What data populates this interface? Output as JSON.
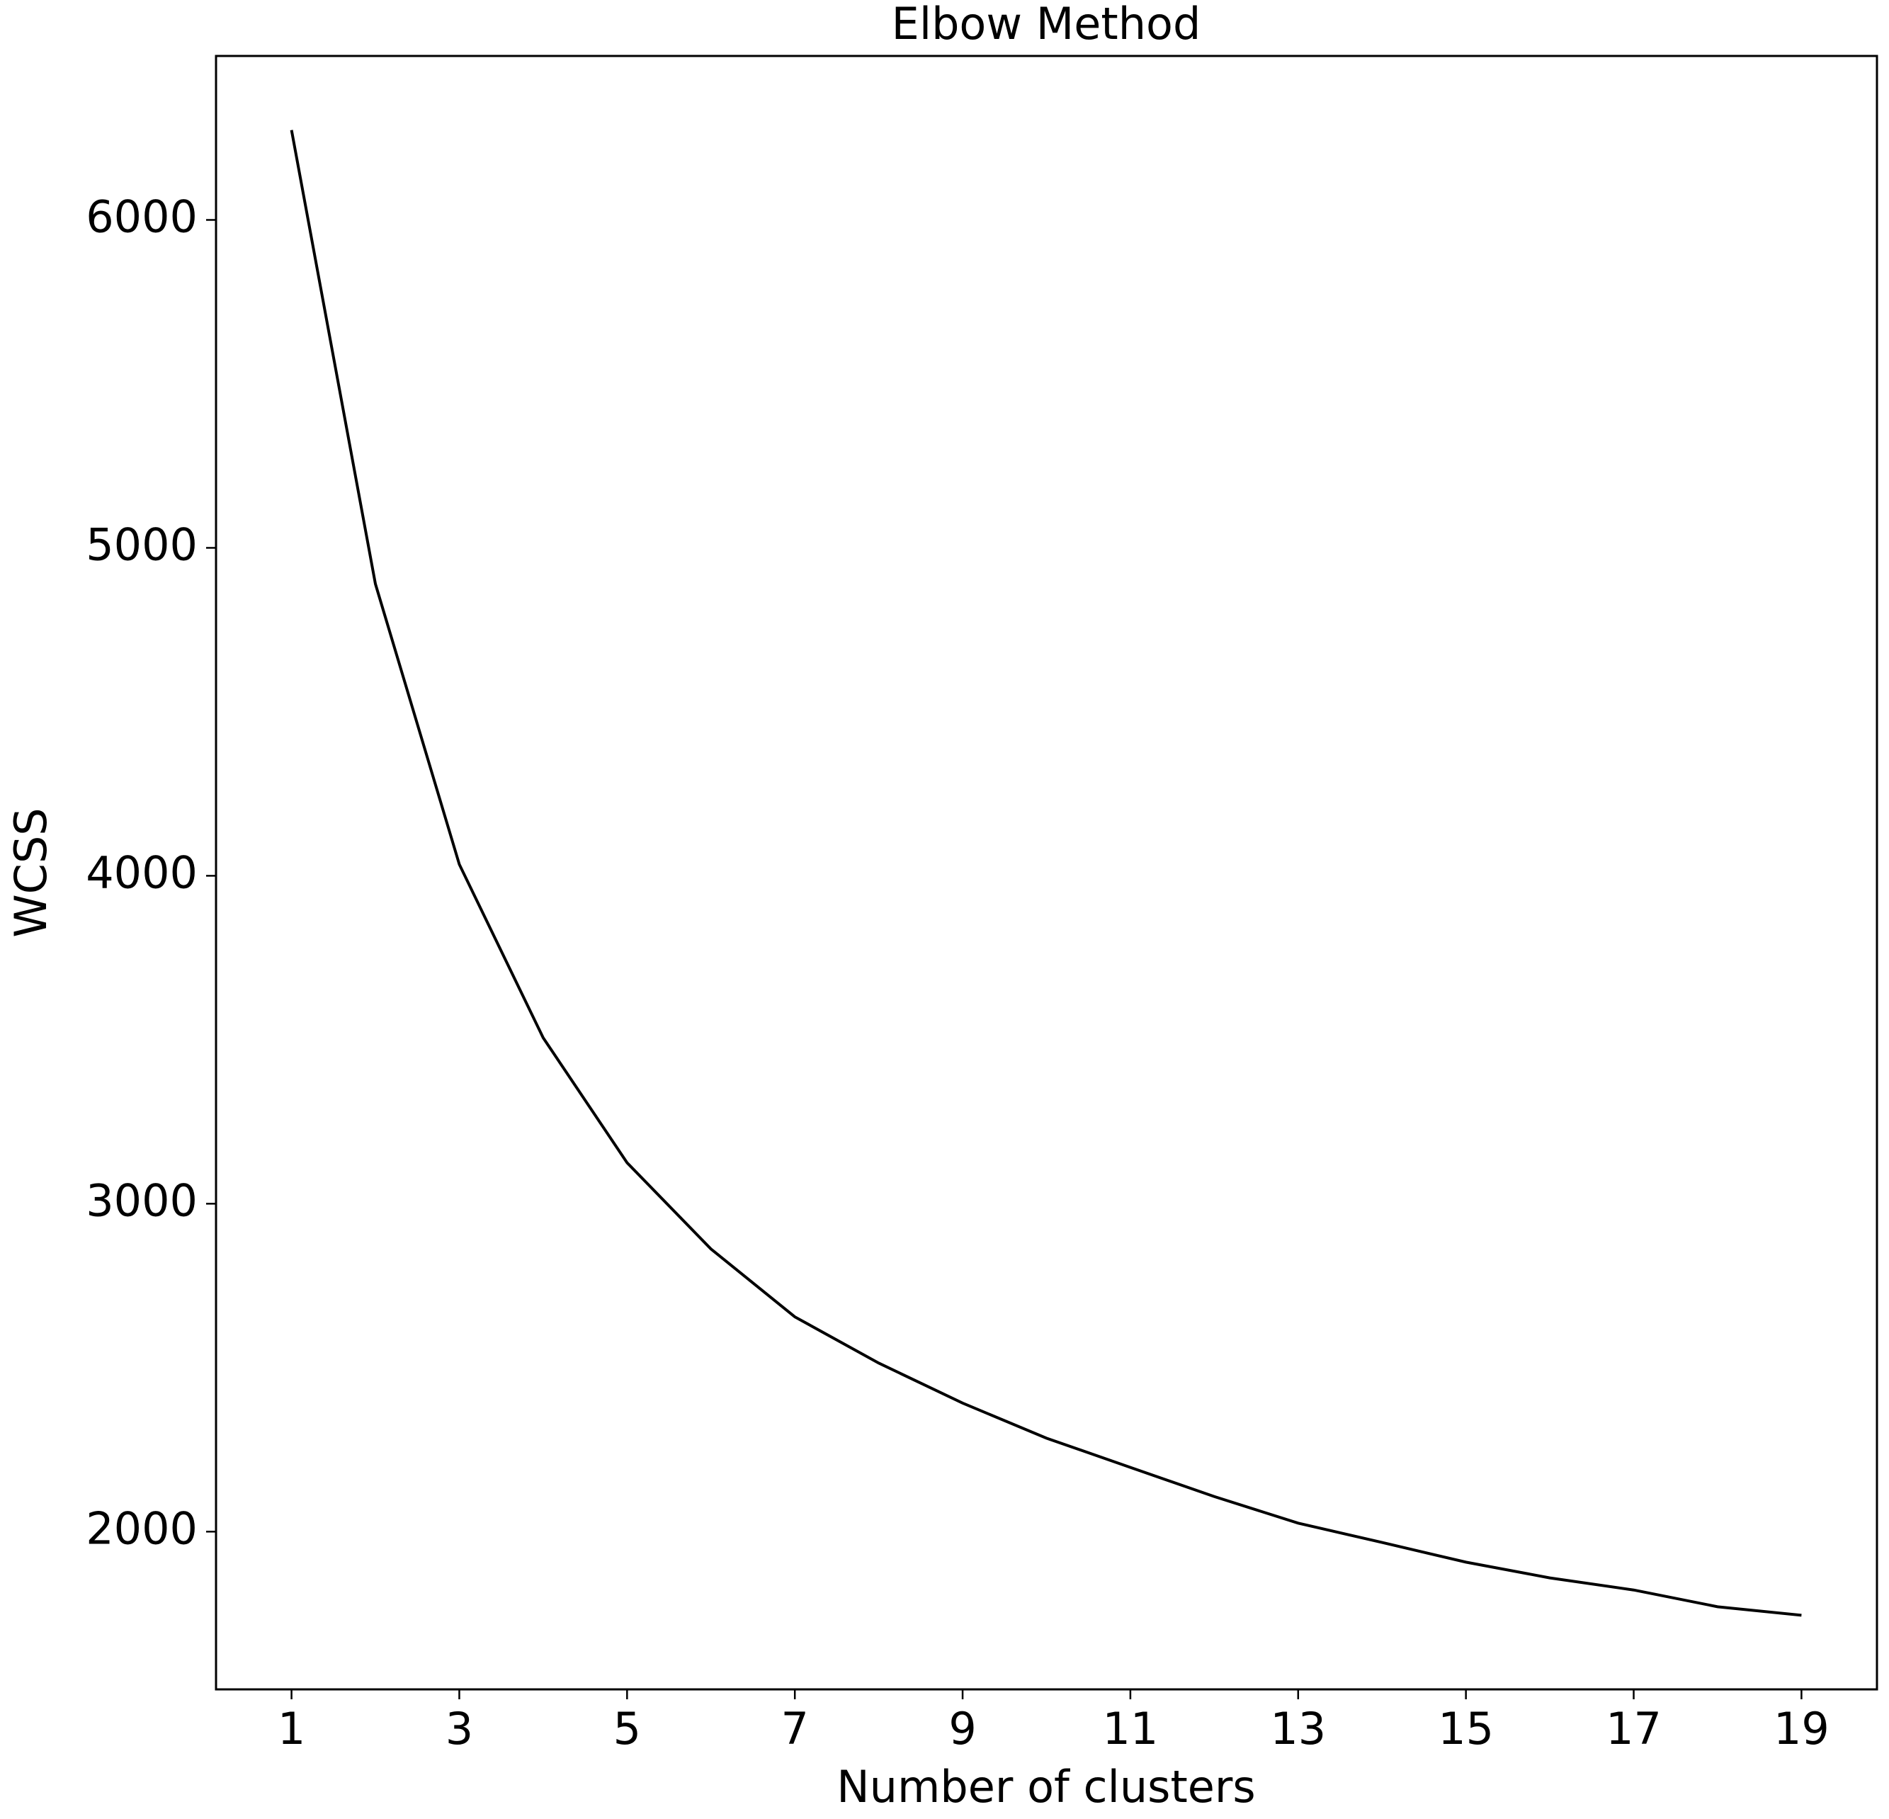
{
  "chart_data": {
    "type": "line",
    "title": "Elbow Method",
    "x_label": "Number of clusters",
    "y_label": "WCSS",
    "x": [
      1,
      2,
      3,
      4,
      5,
      6,
      7,
      8,
      9,
      10,
      11,
      12,
      13,
      14,
      15,
      16,
      17,
      18,
      19
    ],
    "series": [
      {
        "color": "#000000",
        "values": [
          6274,
          4890,
          4035,
          3506,
          3125,
          2862,
          2655,
          2514,
          2392,
          2285,
          2196,
          2107,
          2026,
          1967,
          1907,
          1859,
          1822,
          1771,
          1745
        ]
      }
    ],
    "xlim": [
      0.1,
      19.9
    ],
    "xticks": [
      1,
      3,
      5,
      7,
      9,
      11,
      13,
      15,
      17,
      19
    ],
    "ylim": [
      1519,
      6500
    ],
    "yticks": [
      2000,
      3000,
      4000,
      5000,
      6000
    ]
  }
}
